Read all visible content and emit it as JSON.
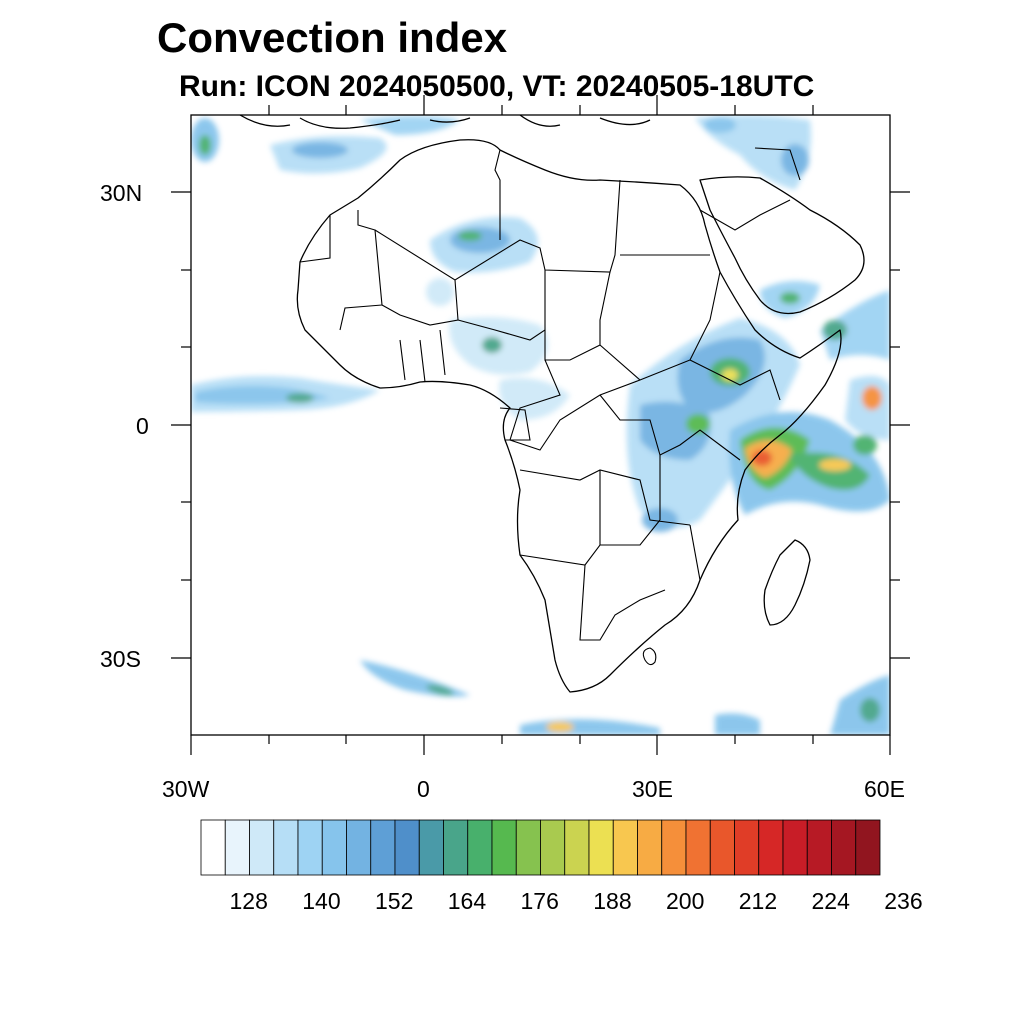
{
  "title": "Convection index",
  "subtitle": "Run: ICON 2024050500,  VT: 20240505-18UTC",
  "axes": {
    "lat_labels": [
      "30N",
      "0",
      "30S"
    ],
    "lon_labels": [
      "30W",
      "0",
      "30E",
      "60E"
    ],
    "lon_range": [
      -30,
      60
    ],
    "lat_range": [
      -40,
      40
    ]
  },
  "colorbar": {
    "colors": [
      "#ffffff",
      "#e8f4fc",
      "#cfe9f8",
      "#b6def6",
      "#9ed3f3",
      "#86c4ec",
      "#73b3e2",
      "#5e9fd6",
      "#4f8fca",
      "#4a9aa8",
      "#49a58a",
      "#48b06c",
      "#56b94f",
      "#86c24f",
      "#a9ca4f",
      "#cbd350",
      "#ece052",
      "#f8c74f",
      "#f7ab44",
      "#f58f3a",
      "#f07232",
      "#e9572b",
      "#e03d27",
      "#d62726",
      "#c81d27",
      "#b71a25",
      "#a51722",
      "#91151f"
    ],
    "labels": [
      "128",
      "140",
      "152",
      "164",
      "176",
      "188",
      "200",
      "212",
      "224",
      "236"
    ]
  },
  "chart_data": {
    "type": "heatmap",
    "title": "Convection index",
    "subtitle": "Run: ICON 2024050500,  VT: 20240505-18UTC",
    "region": "Africa",
    "lon_range": [
      -30,
      60
    ],
    "lat_range": [
      -40,
      40
    ],
    "colorbar_ticks": [
      128,
      140,
      152,
      164,
      176,
      188,
      200,
      212,
      224,
      236
    ],
    "colorbar_step": 4,
    "features": [
      {
        "lon": 45,
        "lat": -3,
        "value": 212
      },
      {
        "lon": 52,
        "lat": -3,
        "value": 188
      },
      {
        "lon": 36,
        "lat": 5,
        "value": 176
      },
      {
        "lon": 33,
        "lat": -1,
        "value": 176
      },
      {
        "lon": 57,
        "lat": 3,
        "value": 200
      },
      {
        "lon": -20,
        "lat": 3,
        "value": 152
      },
      {
        "lon": 4,
        "lat": 24,
        "value": 164
      },
      {
        "lon": -6,
        "lat": 36,
        "value": 152
      },
      {
        "lon": 45,
        "lat": 16,
        "value": 164
      },
      {
        "lon": 49,
        "lat": 36,
        "value": 164
      },
      {
        "lon": 18,
        "lat": -40,
        "value": 188
      },
      {
        "lon": 60,
        "lat": -37,
        "value": 164
      }
    ]
  }
}
